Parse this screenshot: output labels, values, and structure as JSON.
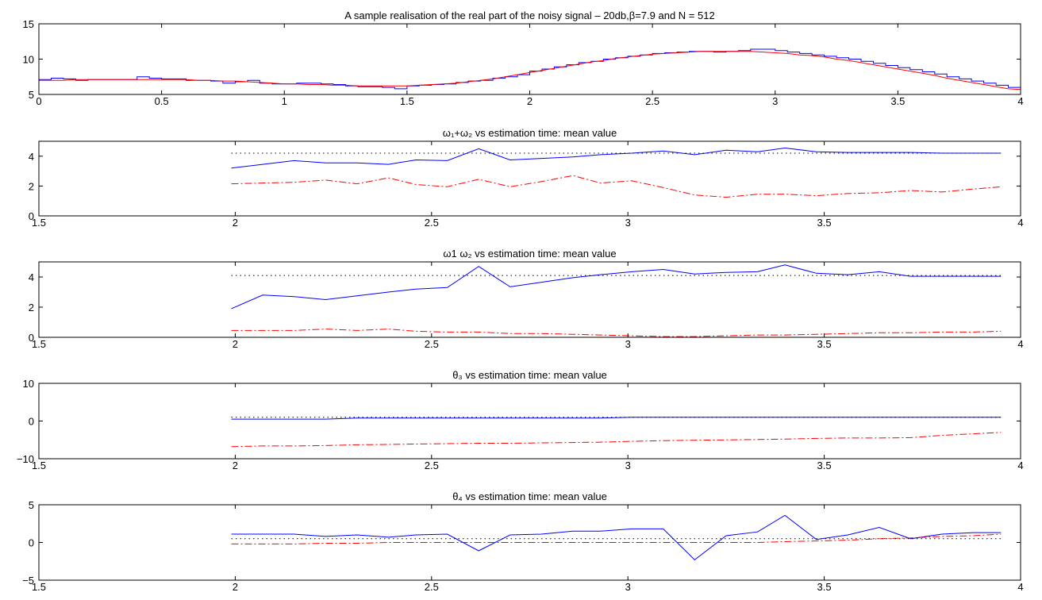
{
  "chart_data": [
    {
      "type": "line",
      "title": "A sample realisation of the real part of the noisy signal – 20db,β=7.9 and N = 512",
      "xlim": [
        0,
        4
      ],
      "ylim": [
        5,
        15
      ],
      "xticks": [
        0,
        0.5,
        1,
        1.5,
        2,
        2.5,
        3,
        3.5,
        4
      ],
      "xtick_labels": [
        "0",
        "0.5",
        "1",
        "1.5",
        "2",
        "2.5",
        "3",
        "3.5",
        "4"
      ],
      "yticks": [
        5,
        10,
        15
      ],
      "ytick_labels": [
        "5",
        "10",
        "15"
      ],
      "grid": false,
      "series": [
        {
          "color": "#0000ff",
          "style": "solid-step",
          "x": [
            0,
            0.05,
            0.1,
            0.15,
            0.2,
            0.25,
            0.3,
            0.35,
            0.4,
            0.45,
            0.5,
            0.55,
            0.6,
            0.65,
            0.7,
            0.75,
            0.8,
            0.85,
            0.9,
            0.95,
            1.0,
            1.05,
            1.1,
            1.15,
            1.2,
            1.25,
            1.3,
            1.35,
            1.4,
            1.45,
            1.5,
            1.55,
            1.6,
            1.65,
            1.7,
            1.75,
            1.8,
            1.85,
            1.9,
            1.95,
            2.0,
            2.05,
            2.1,
            2.15,
            2.2,
            2.25,
            2.3,
            2.35,
            2.4,
            2.45,
            2.5,
            2.55,
            2.6,
            2.65,
            2.7,
            2.75,
            2.8,
            2.85,
            2.9,
            2.95,
            3.0,
            3.05,
            3.1,
            3.15,
            3.2,
            3.25,
            3.3,
            3.35,
            3.4,
            3.45,
            3.5,
            3.55,
            3.6,
            3.65,
            3.7,
            3.75,
            3.8,
            3.85,
            3.9,
            3.95,
            4.0
          ],
          "values": [
            7.1,
            7.3,
            7.2,
            7.0,
            7.1,
            7.1,
            7.1,
            7.1,
            7.5,
            7.3,
            7.2,
            7.2,
            7.0,
            7.0,
            6.9,
            6.6,
            6.8,
            7.0,
            6.6,
            6.5,
            6.5,
            6.6,
            6.6,
            6.5,
            6.4,
            6.2,
            6.1,
            6.1,
            6.0,
            5.8,
            6.2,
            6.3,
            6.4,
            6.5,
            6.7,
            6.9,
            7.0,
            7.3,
            7.5,
            7.8,
            8.3,
            8.6,
            8.9,
            9.2,
            9.5,
            9.7,
            10.0,
            10.2,
            10.4,
            10.6,
            10.8,
            10.9,
            11.0,
            11.1,
            11.1,
            11.0,
            11.1,
            11.2,
            11.4,
            11.4,
            11.2,
            11.0,
            10.8,
            10.6,
            10.4,
            10.2,
            10.0,
            9.7,
            9.4,
            9.1,
            8.8,
            8.5,
            8.2,
            7.9,
            7.5,
            7.2,
            6.9,
            6.6,
            6.3,
            6.0,
            5.7
          ]
        },
        {
          "color": "#ff0000",
          "style": "solid",
          "x": [
            0,
            0.05,
            0.1,
            0.15,
            0.2,
            0.25,
            0.3,
            0.35,
            0.4,
            0.45,
            0.5,
            0.55,
            0.6,
            0.65,
            0.7,
            0.75,
            0.8,
            0.85,
            0.9,
            0.95,
            1.0,
            1.05,
            1.1,
            1.15,
            1.2,
            1.25,
            1.3,
            1.35,
            1.4,
            1.45,
            1.5,
            1.55,
            1.6,
            1.65,
            1.7,
            1.75,
            1.8,
            1.85,
            1.9,
            1.95,
            2.0,
            2.05,
            2.1,
            2.15,
            2.2,
            2.25,
            2.3,
            2.35,
            2.4,
            2.45,
            2.5,
            2.55,
            2.6,
            2.65,
            2.7,
            2.75,
            2.8,
            2.85,
            2.9,
            2.95,
            3.0,
            3.05,
            3.1,
            3.15,
            3.2,
            3.25,
            3.3,
            3.35,
            3.4,
            3.45,
            3.5,
            3.55,
            3.6,
            3.65,
            3.7,
            3.75,
            3.8,
            3.85,
            3.9,
            3.95,
            4.0
          ],
          "values": [
            7.0,
            7.0,
            7.0,
            7.1,
            7.1,
            7.1,
            7.1,
            7.1,
            7.1,
            7.1,
            7.1,
            7.1,
            7.1,
            7.0,
            7.0,
            6.9,
            6.9,
            6.8,
            6.7,
            6.6,
            6.5,
            6.5,
            6.4,
            6.4,
            6.3,
            6.3,
            6.2,
            6.2,
            6.2,
            6.2,
            6.2,
            6.3,
            6.4,
            6.5,
            6.6,
            6.8,
            7.0,
            7.2,
            7.5,
            7.8,
            8.1,
            8.4,
            8.7,
            9.0,
            9.3,
            9.6,
            9.8,
            10.1,
            10.3,
            10.5,
            10.7,
            10.8,
            10.9,
            11.0,
            11.1,
            11.1,
            11.1,
            11.1,
            11.1,
            11.0,
            10.9,
            10.8,
            10.6,
            10.5,
            10.3,
            10.0,
            9.8,
            9.5,
            9.2,
            8.9,
            8.6,
            8.3,
            8.0,
            7.7,
            7.3,
            7.0,
            6.7,
            6.4,
            6.1,
            5.8,
            5.7
          ]
        }
      ]
    },
    {
      "type": "line",
      "title": "ω₁+ω₂ vs estimation time: mean value",
      "xlim": [
        1.5,
        4
      ],
      "ylim": [
        0,
        5
      ],
      "xticks": [
        1.5,
        2,
        2.5,
        3,
        3.5,
        4
      ],
      "xtick_labels": [
        "1.5",
        "2",
        "2.5",
        "3",
        "3.5",
        "4"
      ],
      "yticks": [
        0,
        2,
        4
      ],
      "ytick_labels": [
        "0",
        "2",
        "4"
      ],
      "grid": false,
      "series": [
        {
          "color": "#0000ff",
          "style": "solid",
          "x": [
            1.99,
            2.07,
            2.15,
            2.23,
            2.31,
            2.39,
            2.46,
            2.54,
            2.62,
            2.7,
            2.78,
            2.86,
            2.93,
            3.01,
            3.09,
            3.17,
            3.25,
            3.33,
            3.4,
            3.48,
            3.56,
            3.64,
            3.72,
            3.8,
            3.88,
            3.95
          ],
          "values": [
            3.2,
            3.45,
            3.7,
            3.55,
            3.55,
            3.45,
            3.75,
            3.7,
            4.5,
            3.75,
            3.85,
            3.95,
            4.1,
            4.2,
            4.35,
            4.1,
            4.4,
            4.3,
            4.55,
            4.3,
            4.25,
            4.25,
            4.25,
            4.2,
            4.2,
            4.2
          ]
        },
        {
          "color": "#ff0000",
          "style": "dashdot",
          "x": [
            1.99,
            2.07,
            2.15,
            2.23,
            2.31,
            2.39,
            2.46,
            2.54,
            2.62,
            2.7,
            2.78,
            2.86,
            2.93,
            3.01,
            3.09,
            3.17,
            3.25,
            3.33,
            3.4,
            3.48,
            3.56,
            3.64,
            3.72,
            3.8,
            3.88,
            3.95
          ],
          "values": [
            2.15,
            2.2,
            2.25,
            2.4,
            2.15,
            2.55,
            2.1,
            1.95,
            2.45,
            1.95,
            2.3,
            2.7,
            2.2,
            2.35,
            1.9,
            1.4,
            1.25,
            1.45,
            1.45,
            1.35,
            1.5,
            1.55,
            1.7,
            1.6,
            1.8,
            1.95
          ]
        },
        {
          "color": "#000000",
          "style": "dotted",
          "x": [
            1.99,
            3.95
          ],
          "values": [
            4.2,
            4.2
          ]
        }
      ]
    },
    {
      "type": "line",
      "title": "ω1 ω₂ vs estimation time: mean value",
      "xlim": [
        1.5,
        4
      ],
      "ylim": [
        0,
        5
      ],
      "xticks": [
        1.5,
        2,
        2.5,
        3,
        3.5,
        4
      ],
      "xtick_labels": [
        "1.5",
        "2",
        "2.5",
        "3",
        "3.5",
        "4"
      ],
      "yticks": [
        0,
        2,
        4
      ],
      "ytick_labels": [
        "0",
        "2",
        "4"
      ],
      "grid": false,
      "series": [
        {
          "color": "#0000ff",
          "style": "solid",
          "x": [
            1.99,
            2.07,
            2.15,
            2.23,
            2.31,
            2.39,
            2.46,
            2.54,
            2.62,
            2.7,
            2.78,
            2.86,
            2.93,
            3.01,
            3.09,
            3.17,
            3.25,
            3.33,
            3.4,
            3.48,
            3.56,
            3.64,
            3.72,
            3.8,
            3.88,
            3.95
          ],
          "values": [
            1.9,
            2.8,
            2.7,
            2.5,
            2.75,
            3.0,
            3.2,
            3.3,
            4.7,
            3.35,
            3.65,
            3.95,
            4.15,
            4.35,
            4.5,
            4.2,
            4.3,
            4.35,
            4.8,
            4.25,
            4.15,
            4.35,
            4.05,
            4.05,
            4.05,
            4.05
          ]
        },
        {
          "color": "#ff0000",
          "style": "dashdot",
          "x": [
            1.99,
            2.07,
            2.15,
            2.23,
            2.31,
            2.39,
            2.46,
            2.54,
            2.62,
            2.7,
            2.78,
            2.86,
            2.93,
            3.01,
            3.09,
            3.17,
            3.25,
            3.33,
            3.4,
            3.48,
            3.56,
            3.64,
            3.72,
            3.8,
            3.88,
            3.95
          ],
          "values": [
            0.45,
            0.45,
            0.45,
            0.55,
            0.45,
            0.55,
            0.4,
            0.35,
            0.35,
            0.25,
            0.25,
            0.2,
            0.15,
            0.1,
            0.05,
            0.05,
            0.1,
            0.15,
            0.15,
            0.2,
            0.25,
            0.3,
            0.3,
            0.35,
            0.35,
            0.4
          ]
        },
        {
          "color": "#000000",
          "style": "dotted",
          "x": [
            1.99,
            3.95
          ],
          "values": [
            4.1,
            4.1
          ]
        }
      ]
    },
    {
      "type": "line",
      "title": "θ₃ vs estimation time: mean value",
      "xlim": [
        1.5,
        4
      ],
      "ylim": [
        -10,
        10
      ],
      "xticks": [
        1.5,
        2,
        2.5,
        3,
        3.5,
        4
      ],
      "xtick_labels": [
        "1.5",
        "2",
        "2.5",
        "3",
        "3.5",
        "4"
      ],
      "yticks": [
        -10,
        0,
        10
      ],
      "ytick_labels": [
        "−10",
        "0",
        "10"
      ],
      "grid": false,
      "series": [
        {
          "color": "#0000ff",
          "style": "solid",
          "x": [
            1.99,
            2.07,
            2.15,
            2.23,
            2.31,
            2.39,
            2.46,
            2.54,
            2.62,
            2.7,
            2.78,
            2.86,
            2.93,
            3.01,
            3.09,
            3.17,
            3.25,
            3.33,
            3.4,
            3.48,
            3.56,
            3.64,
            3.72,
            3.8,
            3.88,
            3.95
          ],
          "values": [
            0.5,
            0.5,
            0.5,
            0.5,
            0.8,
            0.8,
            0.8,
            0.8,
            0.8,
            0.8,
            0.8,
            0.8,
            0.8,
            1.0,
            1.0,
            1.0,
            1.0,
            1.0,
            1.0,
            1.0,
            1.0,
            1.0,
            1.0,
            1.0,
            1.0,
            1.0
          ]
        },
        {
          "color": "#ff0000",
          "style": "dashdot",
          "x": [
            1.99,
            2.07,
            2.15,
            2.23,
            2.31,
            2.39,
            2.46,
            2.54,
            2.62,
            2.7,
            2.78,
            2.86,
            2.93,
            3.01,
            3.09,
            3.17,
            3.25,
            3.33,
            3.4,
            3.48,
            3.56,
            3.64,
            3.72,
            3.8,
            3.88,
            3.95
          ],
          "values": [
            -6.8,
            -6.6,
            -6.6,
            -6.5,
            -6.3,
            -6.2,
            -6.1,
            -6.0,
            -5.9,
            -5.9,
            -5.8,
            -5.7,
            -5.6,
            -5.4,
            -5.2,
            -5.1,
            -5.0,
            -4.9,
            -4.8,
            -4.6,
            -4.5,
            -4.5,
            -4.4,
            -3.8,
            -3.4,
            -3.0
          ]
        },
        {
          "color": "#000000",
          "style": "dotted",
          "x": [
            1.99,
            3.95
          ],
          "values": [
            1.0,
            1.0
          ]
        }
      ]
    },
    {
      "type": "line",
      "title": "θ₄ vs estimation time: mean value",
      "xlim": [
        1.5,
        4
      ],
      "ylim": [
        -5,
        5
      ],
      "xticks": [
        1.5,
        2,
        2.5,
        3,
        3.5,
        4
      ],
      "xtick_labels": [
        "1.5",
        "2",
        "2.5",
        "3",
        "3.5",
        "4"
      ],
      "yticks": [
        -5,
        0,
        5
      ],
      "ytick_labels": [
        "−5",
        "0",
        "5"
      ],
      "grid": false,
      "series": [
        {
          "color": "#0000ff",
          "style": "solid",
          "x": [
            1.99,
            2.07,
            2.15,
            2.23,
            2.31,
            2.39,
            2.46,
            2.54,
            2.62,
            2.7,
            2.78,
            2.86,
            2.93,
            3.01,
            3.09,
            3.17,
            3.25,
            3.33,
            3.4,
            3.48,
            3.56,
            3.64,
            3.72,
            3.8,
            3.88,
            3.95
          ],
          "values": [
            1.1,
            1.1,
            1.1,
            0.8,
            1.0,
            0.7,
            1.0,
            1.1,
            -1.1,
            1.0,
            1.1,
            1.5,
            1.5,
            1.8,
            1.8,
            -2.3,
            0.9,
            1.4,
            3.6,
            0.4,
            1.0,
            2.0,
            0.5,
            1.1,
            1.3,
            1.3
          ]
        },
        {
          "color": "#ff0000",
          "style": "dashdot",
          "x": [
            1.99,
            2.07,
            2.15,
            2.23,
            2.31,
            2.39,
            2.46,
            2.54,
            2.62,
            2.7,
            2.78,
            2.86,
            2.93,
            3.01,
            3.09,
            3.17,
            3.25,
            3.33,
            3.4,
            3.48,
            3.56,
            3.64,
            3.72,
            3.8,
            3.88,
            3.95
          ],
          "values": [
            -0.2,
            -0.2,
            -0.2,
            -0.1,
            -0.1,
            0.0,
            0.0,
            0.0,
            0.0,
            0.0,
            0.0,
            0.0,
            0.0,
            0.0,
            0.0,
            0.0,
            0.0,
            0.0,
            0.1,
            0.2,
            0.3,
            0.5,
            0.6,
            0.8,
            0.9,
            1.1
          ]
        },
        {
          "color": "#000000",
          "style": "dotted",
          "x": [
            1.99,
            3.95
          ],
          "values": [
            0.5,
            0.5
          ]
        }
      ]
    }
  ]
}
